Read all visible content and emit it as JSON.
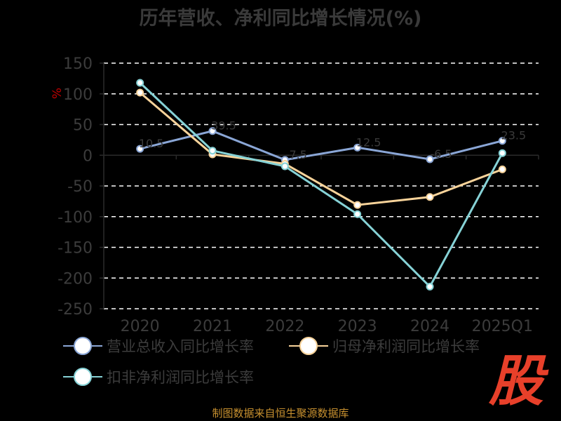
{
  "title": "历年营收、净利同比增长情况(%)",
  "source": "制图数据来自恒生聚源数据库",
  "logo_text": "股",
  "colors": {
    "series1": "#8aa6d6",
    "series2": "#f8d39a",
    "series3": "#86d2d6",
    "axis": "#2a2a2a",
    "grid": "#ffffff",
    "tick_text": "#3c3c3c",
    "ylabel": "#c00000"
  },
  "chart_data": {
    "type": "line",
    "title": "历年营收、净利同比增长情况(%)",
    "ylabel": "%",
    "xlabel": "",
    "categories": [
      "2020",
      "2021",
      "2022",
      "2023",
      "2024",
      "2025Q1"
    ],
    "ylim": [
      -250,
      150
    ],
    "yticks": [
      150,
      100,
      50,
      0,
      -50,
      -100,
      -150,
      -200,
      -250
    ],
    "grid": true,
    "legend": "bottom",
    "series": [
      {
        "name": "营业总收入同比增长率",
        "values": [
          10.5,
          39.5,
          -7.5,
          12.5,
          -6.5,
          23.5
        ],
        "labels": [
          "10.5",
          "39.5",
          "-7.5",
          "12.5",
          "-6.5",
          "23.5"
        ]
      },
      {
        "name": "归母净利润同比增长率",
        "values": [
          102,
          1.5,
          -14,
          -81,
          -68,
          -23
        ],
        "labels": []
      },
      {
        "name": "扣非净利润同比增长率",
        "values": [
          118,
          7.5,
          -18,
          -96,
          -214,
          3.5
        ],
        "labels": []
      }
    ]
  }
}
